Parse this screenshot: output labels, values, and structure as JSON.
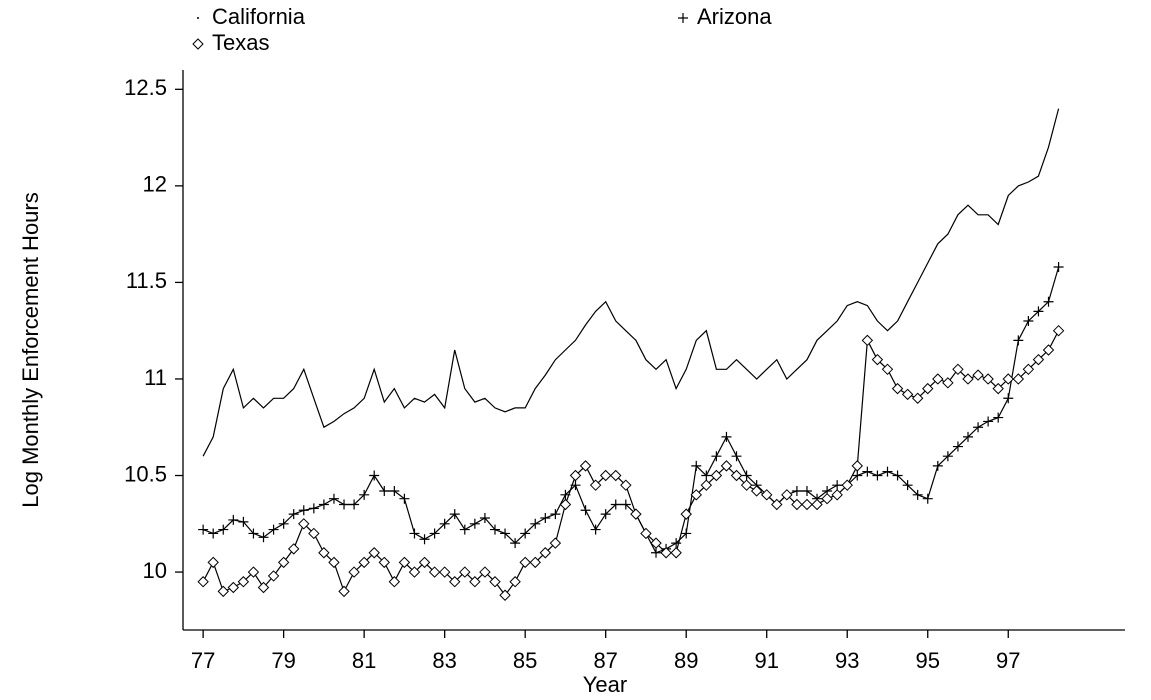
{
  "chart_data": {
    "type": "line",
    "xlabel": "Year",
    "ylabel": "Log Monthly Enforcement Hours",
    "xlim": [
      76.5,
      99.9
    ],
    "ylim": [
      9.7,
      12.6
    ],
    "xticks": [
      77,
      79,
      81,
      83,
      85,
      87,
      89,
      91,
      93,
      95,
      97
    ],
    "yticks": [
      10,
      10.5,
      11,
      11.5,
      12,
      12.5
    ],
    "grid": false,
    "x": [
      77,
      77.25,
      77.5,
      77.75,
      78,
      78.25,
      78.5,
      78.75,
      79,
      79.25,
      79.5,
      79.75,
      80,
      80.25,
      80.5,
      80.75,
      81,
      81.25,
      81.5,
      81.75,
      82,
      82.25,
      82.5,
      82.75,
      83,
      83.25,
      83.5,
      83.75,
      84,
      84.25,
      84.5,
      84.75,
      85,
      85.25,
      85.5,
      85.75,
      86,
      86.25,
      86.5,
      86.75,
      87,
      87.25,
      87.5,
      87.75,
      88,
      88.25,
      88.5,
      88.75,
      89,
      89.25,
      89.5,
      89.75,
      90,
      90.25,
      90.5,
      90.75,
      91,
      91.25,
      91.5,
      91.75,
      92,
      92.25,
      92.5,
      92.75,
      93,
      93.25,
      93.5,
      93.75,
      94,
      94.25,
      94.5,
      94.75,
      95,
      95.25,
      95.5,
      95.75,
      96,
      96.25,
      96.5,
      96.75,
      97,
      97.25,
      97.5,
      97.75,
      98,
      98.25
    ],
    "series": [
      {
        "name": "California",
        "color": "#000000",
        "marker": "dot",
        "values": [
          10.6,
          10.7,
          10.95,
          11.05,
          10.85,
          10.9,
          10.85,
          10.9,
          10.9,
          10.95,
          11.05,
          10.9,
          10.75,
          10.78,
          10.82,
          10.85,
          10.9,
          11.05,
          10.88,
          10.95,
          10.85,
          10.9,
          10.88,
          10.92,
          10.85,
          11.15,
          10.95,
          10.88,
          10.9,
          10.85,
          10.83,
          10.85,
          10.85,
          10.95,
          11.02,
          11.1,
          11.15,
          11.2,
          11.28,
          11.35,
          11.4,
          11.3,
          11.25,
          11.2,
          11.1,
          11.05,
          11.1,
          10.95,
          11.05,
          11.2,
          11.25,
          11.05,
          11.05,
          11.1,
          11.05,
          11.0,
          11.05,
          11.1,
          11.0,
          11.05,
          11.1,
          11.2,
          11.25,
          11.3,
          11.38,
          11.4,
          11.38,
          11.3,
          11.25,
          11.3,
          11.4,
          11.5,
          11.6,
          11.7,
          11.75,
          11.85,
          11.9,
          11.85,
          11.85,
          11.8,
          11.95,
          12.0,
          12.02,
          12.05,
          12.2,
          12.4
        ]
      },
      {
        "name": "Arizona",
        "color": "#000000",
        "marker": "plus",
        "values": [
          10.22,
          10.2,
          10.22,
          10.27,
          10.26,
          10.2,
          10.18,
          10.22,
          10.25,
          10.3,
          10.32,
          10.33,
          10.35,
          10.38,
          10.35,
          10.35,
          10.4,
          10.5,
          10.42,
          10.42,
          10.38,
          10.2,
          10.17,
          10.2,
          10.25,
          10.3,
          10.22,
          10.25,
          10.28,
          10.22,
          10.2,
          10.15,
          10.2,
          10.25,
          10.28,
          10.3,
          10.4,
          10.45,
          10.32,
          10.22,
          10.3,
          10.35,
          10.35,
          10.3,
          10.2,
          10.1,
          10.12,
          10.15,
          10.2,
          10.55,
          10.5,
          10.6,
          10.7,
          10.6,
          10.5,
          10.45,
          10.4,
          10.35,
          10.4,
          10.42,
          10.42,
          10.38,
          10.42,
          10.45,
          10.45,
          10.5,
          10.52,
          10.5,
          10.52,
          10.5,
          10.45,
          10.4,
          10.38,
          10.55,
          10.6,
          10.65,
          10.7,
          10.75,
          10.78,
          10.8,
          10.9,
          11.2,
          11.3,
          11.35,
          11.4,
          11.58
        ]
      },
      {
        "name": "Texas",
        "color": "#000000",
        "marker": "diamond",
        "values": [
          9.95,
          10.05,
          9.9,
          9.92,
          9.95,
          10.0,
          9.92,
          9.98,
          10.05,
          10.12,
          10.25,
          10.2,
          10.1,
          10.05,
          9.9,
          10.0,
          10.05,
          10.1,
          10.05,
          9.95,
          10.05,
          10.0,
          10.05,
          10.0,
          10.0,
          9.95,
          10.0,
          9.95,
          10.0,
          9.95,
          9.88,
          9.95,
          10.05,
          10.05,
          10.1,
          10.15,
          10.35,
          10.5,
          10.55,
          10.45,
          10.5,
          10.5,
          10.45,
          10.3,
          10.2,
          10.15,
          10.1,
          10.1,
          10.3,
          10.4,
          10.45,
          10.5,
          10.55,
          10.5,
          10.45,
          10.42,
          10.4,
          10.35,
          10.4,
          10.35,
          10.35,
          10.35,
          10.38,
          10.4,
          10.45,
          10.55,
          11.2,
          11.1,
          11.05,
          10.95,
          10.92,
          10.9,
          10.95,
          11.0,
          10.98,
          11.05,
          11.0,
          11.02,
          11.0,
          10.95,
          11.0,
          11.0,
          11.05,
          11.1,
          11.15,
          11.25
        ]
      }
    ]
  }
}
